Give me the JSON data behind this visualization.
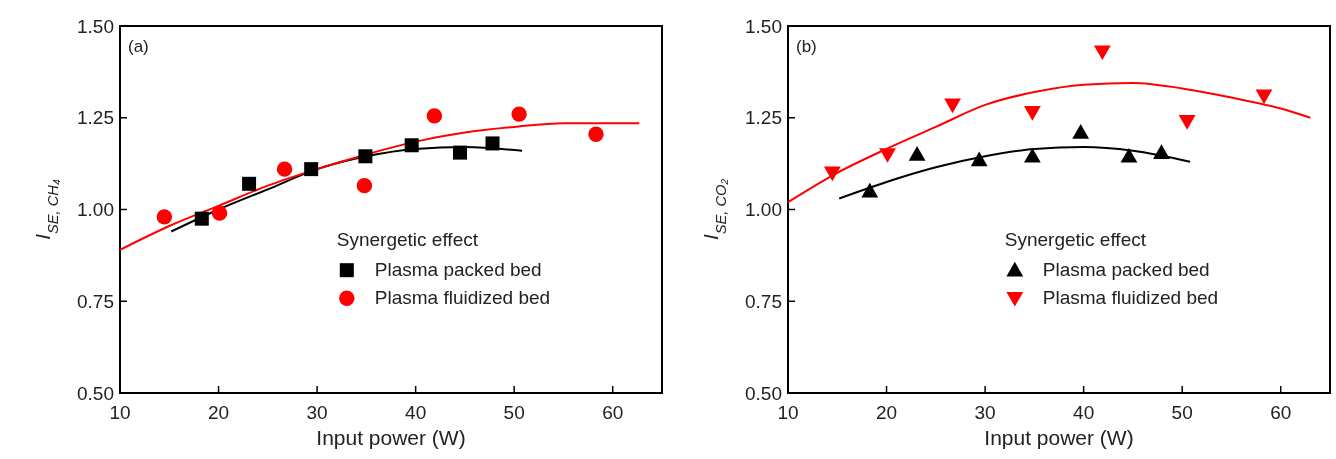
{
  "chart_data": [
    {
      "type": "scatter",
      "annotations": [
        "(a)"
      ],
      "xlabel": "Input power (W)",
      "ylabel": "I$_{SE, CH₄}$",
      "legend_title": "Synergetic effect",
      "legend": "right",
      "xlim": [
        10,
        65
      ],
      "ylim": [
        0.5,
        1.5
      ],
      "xticks": [
        10,
        20,
        30,
        40,
        50,
        60
      ],
      "yticks": [
        {
          "value": 0.5,
          "label": "0.50"
        },
        {
          "value": 0.75,
          "label": "0.75"
        },
        {
          "value": 1,
          "label": "1.00"
        },
        {
          "value": 1.25,
          "label": "1.25"
        },
        {
          "value": 1.5,
          "label": "1.50"
        }
      ],
      "grid": false,
      "series": [
        {
          "type": "line",
          "color": "#000000",
          "x": [
            15.2,
            20,
            25,
            30,
            35,
            40,
            45,
            50.8
          ],
          "values": [
            0.94,
            1.0,
            1.055,
            1.11,
            1.145,
            1.165,
            1.17,
            1.16
          ]
        },
        {
          "type": "line",
          "color": "#ff0000",
          "x": [
            10,
            15,
            20,
            25,
            30,
            35,
            40,
            45,
            50,
            55,
            62.7
          ],
          "values": [
            0.89,
            0.955,
            1.01,
            1.065,
            1.11,
            1.15,
            1.185,
            1.21,
            1.225,
            1.235,
            1.235
          ]
        },
        {
          "name": "Plasma packed bed",
          "color": "#000000",
          "marker": "square",
          "x": [
            18.3,
            23.1,
            29.4,
            34.9,
            39.6,
            44.5,
            47.8
          ],
          "values": [
            0.975,
            1.07,
            1.11,
            1.145,
            1.175,
            1.155,
            1.18
          ]
        },
        {
          "name": "Plasma fluidized bed",
          "color": "#ff0000",
          "marker": "circle",
          "x": [
            14.5,
            20.1,
            26.7,
            34.8,
            41.9,
            50.5,
            58.3
          ],
          "values": [
            0.98,
            0.99,
            1.11,
            1.065,
            1.255,
            1.26,
            1.205
          ]
        }
      ]
    },
    {
      "type": "scatter",
      "annotations": [
        "(b)"
      ],
      "xlabel": "Input power (W)",
      "ylabel": "I$_{SE, CO₂}$",
      "legend_title": "Synergetic effect",
      "legend": "right",
      "xlim": [
        10,
        65
      ],
      "ylim": [
        0.5,
        1.5
      ],
      "xticks": [
        10,
        20,
        30,
        40,
        50,
        60
      ],
      "yticks": [
        {
          "value": 0.5,
          "label": "0.50"
        },
        {
          "value": 0.75,
          "label": "0.75"
        },
        {
          "value": 1,
          "label": "1.00"
        },
        {
          "value": 1.25,
          "label": "1.25"
        },
        {
          "value": 1.5,
          "label": "1.50"
        }
      ],
      "grid": false,
      "series": [
        {
          "type": "line",
          "color": "#000000",
          "x": [
            15.2,
            20,
            25,
            30,
            35,
            40,
            45,
            50.8
          ],
          "values": [
            1.03,
            1.075,
            1.115,
            1.145,
            1.165,
            1.17,
            1.16,
            1.13
          ]
        },
        {
          "type": "line",
          "color": "#ff0000",
          "x": [
            10,
            15,
            20,
            25,
            30,
            35,
            40,
            45,
            50,
            55,
            60,
            63
          ],
          "values": [
            1.02,
            1.1,
            1.165,
            1.225,
            1.285,
            1.32,
            1.34,
            1.345,
            1.33,
            1.305,
            1.275,
            1.25
          ]
        },
        {
          "name": "Plasma packed bed",
          "color": "#000000",
          "marker": "triangle",
          "x": [
            18.3,
            23.1,
            29.4,
            34.8,
            39.7,
            44.6,
            47.9
          ],
          "values": [
            1.05,
            1.15,
            1.135,
            1.145,
            1.21,
            1.145,
            1.155
          ]
        },
        {
          "name": "Plasma fluidized bed",
          "color": "#ff0000",
          "marker": "triangle-down",
          "x": [
            14.5,
            20.1,
            26.7,
            34.8,
            41.9,
            50.5,
            58.3
          ],
          "values": [
            1.1,
            1.15,
            1.285,
            1.265,
            1.43,
            1.24,
            1.31
          ]
        }
      ]
    }
  ]
}
